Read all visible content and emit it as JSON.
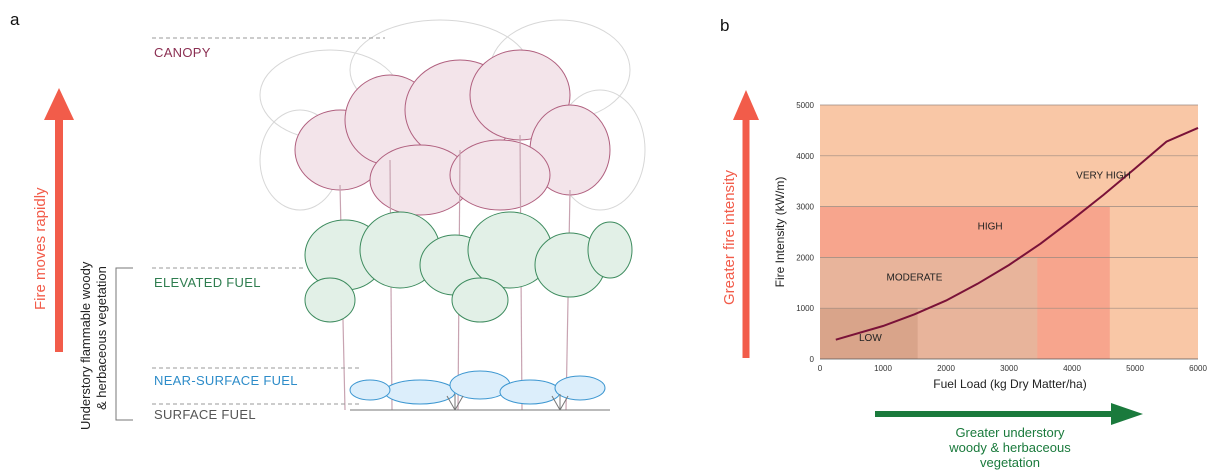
{
  "panel_a": {
    "letter": "a",
    "layers": {
      "canopy": "CANOPY",
      "elevated": "ELEVATED FUEL",
      "near_surface": "NEAR-SURFACE FUEL",
      "surface": "SURFACE FUEL"
    },
    "arrow_label": "Fire moves rapidly",
    "bracket_label_1": "Understory flammable woody",
    "bracket_label_2": "& herbaceous vegetation",
    "colors": {
      "canopy": "#8b2f52",
      "elevated": "#2e7d4f",
      "near_surface": "#2d8cc9",
      "surface": "#555555",
      "arrow": "#f25c4a"
    }
  },
  "panel_b": {
    "letter": "b",
    "side_arrow_label": "Greater fire intensity",
    "bottom_arrow_label": [
      "Greater understory",
      "woody & herbaceous",
      "vegetation"
    ],
    "colors": {
      "side_arrow": "#f25c4a",
      "bottom_arrow": "#1a7a3c",
      "curve": "#7a1238"
    }
  },
  "chart_data": {
    "type": "line",
    "title": "",
    "xlabel": "Fuel Load (kg Dry Matter/ha)",
    "ylabel": "Fire Intensity (kW/m)",
    "xlim": [
      0,
      6000
    ],
    "ylim": [
      0,
      5000
    ],
    "xticks": [
      "0",
      "1000",
      "2000",
      "3000",
      "4000",
      "5000",
      "6000"
    ],
    "yticks": [
      "0",
      "1000",
      "2000",
      "3000",
      "4000",
      "5000"
    ],
    "grid": true,
    "x": [
      250,
      1000,
      1500,
      2000,
      2500,
      3000,
      3500,
      4000,
      4500,
      5000,
      5500,
      6000
    ],
    "series": [
      {
        "values": [
          380,
          650,
          880,
          1150,
          1480,
          1850,
          2270,
          2740,
          3230,
          3750,
          4280,
          4550
        ]
      }
    ],
    "zones": [
      {
        "label": "LOW",
        "x_end": 1550,
        "y_end": 1000,
        "color": "#d9a48a"
      },
      {
        "label": "MODERATE",
        "x_end": 3450,
        "y_end": 2000,
        "color": "#e8b49b"
      },
      {
        "label": "HIGH",
        "x_end": 4600,
        "y_end": 3000,
        "color": "#f7a58d"
      },
      {
        "label": "VERY HIGH",
        "x_end": 6000,
        "y_end": 5000,
        "color": "#f9c7a6"
      }
    ]
  }
}
